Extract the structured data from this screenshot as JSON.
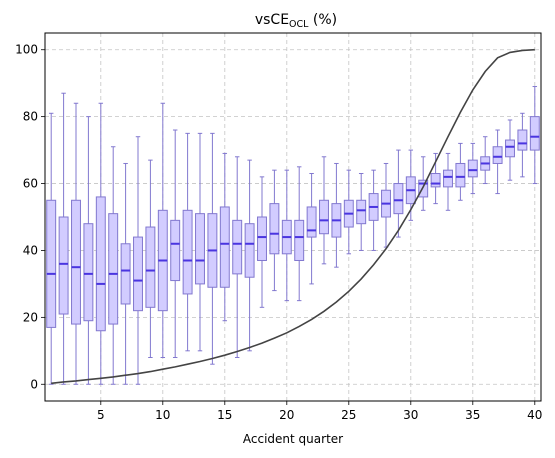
{
  "chart_data": {
    "type": "box",
    "title": "vsCE",
    "title_subscript": "OCL",
    "title_suffix": " (%)",
    "xlabel": "Accident quarter",
    "ylabel": "",
    "xlim": [
      0.5,
      40.5
    ],
    "ylim": [
      -5,
      105
    ],
    "xticks": [
      5,
      10,
      15,
      20,
      25,
      30,
      35,
      40
    ],
    "yticks": [
      0,
      20,
      40,
      60,
      80,
      100
    ],
    "grid": true,
    "colors": {
      "box_fill": "#d2ccff",
      "box_edge": "#8278cf",
      "median": "#4a35e0",
      "whisker": "#8278cf",
      "line": "#444444",
      "grid": "#c4c4c4"
    },
    "boxes": [
      {
        "x": 1,
        "whislo": 0,
        "q1": 17,
        "med": 33,
        "q3": 55,
        "whishi": 81
      },
      {
        "x": 2,
        "whislo": 0,
        "q1": 21,
        "med": 36,
        "q3": 50,
        "whishi": 87
      },
      {
        "x": 3,
        "whislo": 0,
        "q1": 18,
        "med": 35,
        "q3": 55,
        "whishi": 84
      },
      {
        "x": 4,
        "whislo": 0,
        "q1": 19,
        "med": 33,
        "q3": 48,
        "whishi": 80
      },
      {
        "x": 5,
        "whislo": 0,
        "q1": 16,
        "med": 30,
        "q3": 56,
        "whishi": 84
      },
      {
        "x": 6,
        "whislo": 0,
        "q1": 18,
        "med": 33,
        "q3": 51,
        "whishi": 71
      },
      {
        "x": 7,
        "whislo": 0,
        "q1": 24,
        "med": 34,
        "q3": 42,
        "whishi": 66
      },
      {
        "x": 8,
        "whislo": 0,
        "q1": 22,
        "med": 31,
        "q3": 44,
        "whishi": 74
      },
      {
        "x": 9,
        "whislo": 8,
        "q1": 23,
        "med": 34,
        "q3": 47,
        "whishi": 67
      },
      {
        "x": 10,
        "whislo": 8,
        "q1": 22,
        "med": 37,
        "q3": 52,
        "whishi": 84
      },
      {
        "x": 11,
        "whislo": 8,
        "q1": 31,
        "med": 42,
        "q3": 49,
        "whishi": 76
      },
      {
        "x": 12,
        "whislo": 10,
        "q1": 27,
        "med": 37,
        "q3": 52,
        "whishi": 75
      },
      {
        "x": 13,
        "whislo": 10,
        "q1": 30,
        "med": 37,
        "q3": 51,
        "whishi": 75
      },
      {
        "x": 14,
        "whislo": 6,
        "q1": 29,
        "med": 40,
        "q3": 51,
        "whishi": 75
      },
      {
        "x": 15,
        "whislo": 19,
        "q1": 29,
        "med": 42,
        "q3": 53,
        "whishi": 69
      },
      {
        "x": 16,
        "whislo": 8,
        "q1": 33,
        "med": 42,
        "q3": 49,
        "whishi": 68
      },
      {
        "x": 17,
        "whislo": 10,
        "q1": 32,
        "med": 42,
        "q3": 48,
        "whishi": 67
      },
      {
        "x": 18,
        "whislo": 23,
        "q1": 37,
        "med": 44,
        "q3": 50,
        "whishi": 62
      },
      {
        "x": 19,
        "whislo": 28,
        "q1": 39,
        "med": 45,
        "q3": 54,
        "whishi": 64
      },
      {
        "x": 20,
        "whislo": 25,
        "q1": 39,
        "med": 44,
        "q3": 49,
        "whishi": 64
      },
      {
        "x": 21,
        "whislo": 25,
        "q1": 37,
        "med": 44,
        "q3": 49,
        "whishi": 65
      },
      {
        "x": 22,
        "whislo": 30,
        "q1": 44,
        "med": 46,
        "q3": 53,
        "whishi": 63
      },
      {
        "x": 23,
        "whislo": 36,
        "q1": 45,
        "med": 49,
        "q3": 55,
        "whishi": 68
      },
      {
        "x": 24,
        "whislo": 35,
        "q1": 44,
        "med": 49,
        "q3": 54,
        "whishi": 66
      },
      {
        "x": 25,
        "whislo": 39,
        "q1": 47,
        "med": 51,
        "q3": 55,
        "whishi": 64
      },
      {
        "x": 26,
        "whislo": 40,
        "q1": 48,
        "med": 52,
        "q3": 55,
        "whishi": 63
      },
      {
        "x": 27,
        "whislo": 40,
        "q1": 49,
        "med": 53,
        "q3": 57,
        "whishi": 64
      },
      {
        "x": 28,
        "whislo": 41,
        "q1": 50,
        "med": 54,
        "q3": 58,
        "whishi": 66
      },
      {
        "x": 29,
        "whislo": 44,
        "q1": 51,
        "med": 55,
        "q3": 60,
        "whishi": 70
      },
      {
        "x": 30,
        "whislo": 49,
        "q1": 54,
        "med": 58,
        "q3": 62,
        "whishi": 70
      },
      {
        "x": 31,
        "whislo": 52,
        "q1": 56,
        "med": 60,
        "q3": 61,
        "whishi": 68
      },
      {
        "x": 32,
        "whislo": 54,
        "q1": 59,
        "med": 60,
        "q3": 63,
        "whishi": 69
      },
      {
        "x": 33,
        "whislo": 52,
        "q1": 59,
        "med": 62,
        "q3": 64,
        "whishi": 69
      },
      {
        "x": 34,
        "whislo": 55,
        "q1": 59,
        "med": 62,
        "q3": 66,
        "whishi": 72
      },
      {
        "x": 35,
        "whislo": 57,
        "q1": 62,
        "med": 64,
        "q3": 67,
        "whishi": 72
      },
      {
        "x": 36,
        "whislo": 60,
        "q1": 64,
        "med": 66,
        "q3": 68,
        "whishi": 74
      },
      {
        "x": 37,
        "whislo": 57,
        "q1": 66,
        "med": 68,
        "q3": 71,
        "whishi": 76
      },
      {
        "x": 38,
        "whislo": 61,
        "q1": 68,
        "med": 71,
        "q3": 73,
        "whishi": 79
      },
      {
        "x": 39,
        "whislo": 62,
        "q1": 70,
        "med": 72,
        "q3": 76,
        "whishi": 81
      },
      {
        "x": 40,
        "whislo": 60,
        "q1": 70,
        "med": 74,
        "q3": 80,
        "whishi": 89
      }
    ],
    "line": {
      "x": [
        1,
        2,
        3,
        4,
        5,
        6,
        7,
        8,
        9,
        10,
        11,
        12,
        13,
        14,
        15,
        16,
        17,
        18,
        19,
        20,
        21,
        22,
        23,
        24,
        25,
        26,
        27,
        28,
        29,
        30,
        31,
        32,
        33,
        34,
        35,
        36,
        37,
        38,
        39,
        40
      ],
      "y": [
        0.3,
        0.7,
        1.0,
        1.4,
        1.8,
        2.2,
        2.7,
        3.2,
        3.8,
        4.5,
        5.2,
        6.0,
        6.8,
        7.7,
        8.7,
        9.8,
        11.0,
        12.3,
        13.8,
        15.4,
        17.3,
        19.4,
        21.8,
        24.6,
        27.8,
        31.5,
        35.7,
        40.5,
        46.0,
        52.2,
        59.0,
        66.5,
        74.0,
        81.3,
        88.0,
        93.5,
        97.6,
        99.2,
        99.8,
        100
      ]
    }
  }
}
